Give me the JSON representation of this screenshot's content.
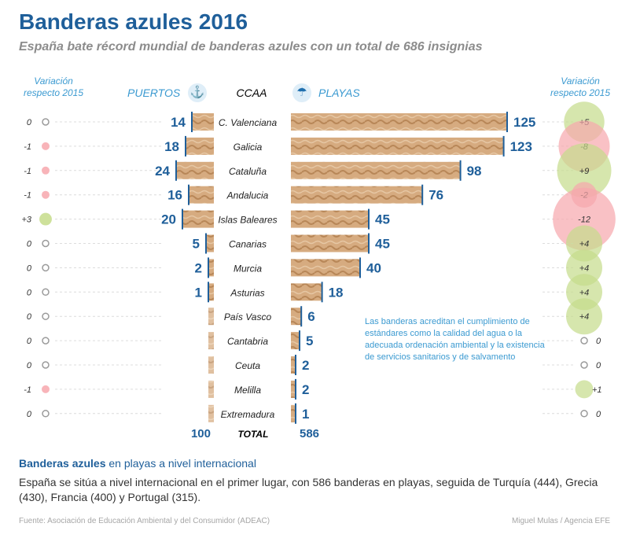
{
  "title": "Banderas azules 2016",
  "subtitle": "España bate récord mundial de banderas azules con un total de 686 insignias",
  "var_header_left": "Variación respecto 2015",
  "var_header_right": "Variación respecto 2015",
  "ports_header": "PUERTOS",
  "ccaa_header": "CCAA",
  "beaches_header": "PLAYAS",
  "icons": {
    "ports": "anchor-icon",
    "beaches": "beach-umbrella-icon"
  },
  "colors": {
    "title": "#1f5f9a",
    "accent": "#3b9ad1",
    "sand": "#d1a57a",
    "positive": "#c5dc8a",
    "negative": "#f7a7ad",
    "neutral": "#9a9a9a"
  },
  "chart_data": {
    "type": "bar",
    "title": "Banderas azules 2016",
    "categories": [
      "C. Valenciana",
      "Galicia",
      "Cataluña",
      "Andalucia",
      "Islas Baleares",
      "Canarias",
      "Murcia",
      "Asturias",
      "País Vasco",
      "Cantabria",
      "Ceuta",
      "Melilla",
      "Extremadura"
    ],
    "series": [
      {
        "name": "PUERTOS",
        "values": [
          14,
          18,
          24,
          16,
          20,
          5,
          2,
          1,
          0,
          0,
          0,
          0,
          0
        ]
      },
      {
        "name": "PLAYAS",
        "values": [
          125,
          123,
          98,
          76,
          45,
          45,
          40,
          18,
          6,
          5,
          2,
          2,
          1
        ]
      }
    ],
    "ports_variation": [
      "0",
      "-1",
      "-1",
      "-1",
      "+3",
      "0",
      "0",
      "0",
      "0",
      "0",
      "0",
      "-1",
      "0"
    ],
    "beaches_variation": [
      "+5",
      "-8",
      "+9",
      "-2",
      "-12",
      "+4",
      "+4",
      "+4",
      "+4",
      "0",
      "0",
      "+1",
      "0"
    ],
    "totals": {
      "label": "TOTAL",
      "ports": "100",
      "beaches": "586"
    }
  },
  "note": "Las banderas acreditan el cumplimiento de estándares como la calidad del agua o la adecuada ordenación ambiental y la existencia de servicios sanitarios y de salvamento",
  "intl_title_bold": "Banderas azules",
  "intl_title_rest": " en playas a nivel internacional",
  "intl_text": "España se sitúa a nivel internacional en el primer lugar, con 586 banderas en playas, seguida de Turquía (444), Grecia (430), Francia (400) y Portugal (315).",
  "source": "Fuente: Asociación de Educación Ambiental y del Consumidor (ADEAC)",
  "credit": "Miguel Mulas / Agencia EFE"
}
